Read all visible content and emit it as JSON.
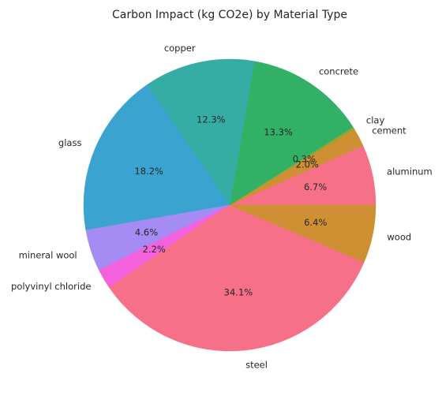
{
  "chart_data": {
    "type": "pie",
    "title": "Carbon Impact (kg CO2e) by Material Type",
    "start_angle_deg": 0,
    "direction": "counterclockwise",
    "slices": [
      {
        "label": "aluminum",
        "pct_label": "6.7%",
        "value": 6.7,
        "color": "#f67088"
      },
      {
        "label": "cement",
        "pct_label": "2.0%",
        "value": 2.0,
        "color": "#ce9032"
      },
      {
        "label": "clay",
        "pct_label": "0.3%",
        "value": 0.3,
        "color": "#97a431"
      },
      {
        "label": "concrete",
        "pct_label": "13.3%",
        "value": 13.3,
        "color": "#32b166"
      },
      {
        "label": "copper",
        "pct_label": "12.3%",
        "value": 12.3,
        "color": "#36ada4"
      },
      {
        "label": "glass",
        "pct_label": "18.2%",
        "value": 18.2,
        "color": "#3ba3d0"
      },
      {
        "label": "mineral wool",
        "pct_label": "4.6%",
        "value": 4.6,
        "color": "#a48cf4"
      },
      {
        "label": "polyvinyl chloride",
        "pct_label": "2.2%",
        "value": 2.2,
        "color": "#f461dd"
      },
      {
        "label": "steel",
        "pct_label": "34.1%",
        "value": 34.1,
        "color": "#f67088"
      },
      {
        "label": "wood",
        "pct_label": "6.4%",
        "value": 6.4,
        "color": "#ce9032"
      }
    ]
  }
}
